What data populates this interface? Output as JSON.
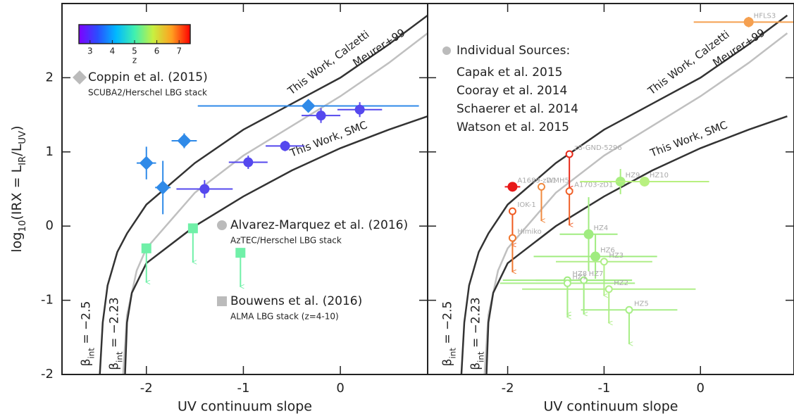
{
  "chart_data": [
    {
      "type": "scatter",
      "xlabel": "UV continuum slope",
      "ylabel": [
        "log",
        "10",
        "(IRX = L",
        "IR",
        "/L",
        "UV",
        ")"
      ],
      "xlim": [
        -2.87,
        0.9
      ],
      "ylim": [
        -2,
        3
      ],
      "xticks": [
        -2,
        -1,
        0
      ],
      "yticks": [
        -2,
        -1,
        0,
        1,
        2
      ],
      "colorbar": {
        "label": "z",
        "lim": [
          2.5,
          7.5
        ],
        "ticks": [
          3,
          4,
          5,
          6,
          7
        ],
        "colormap": [
          "#7f00ff",
          "#2a4dff",
          "#00b8ff",
          "#40f0b0",
          "#c8f040",
          "#ffa020",
          "#ff0000"
        ]
      },
      "curves": [
        {
          "name": "This Work, Calzetti",
          "color": "#333333",
          "x": [
            -2.48,
            -2.45,
            -2.4,
            -2.3,
            -2.2,
            -2.0,
            -1.5,
            -1.0,
            -0.5,
            0,
            0.5,
            0.9
          ],
          "y": [
            -2,
            -1.3,
            -0.8,
            -0.35,
            -0.1,
            0.29,
            0.85,
            1.3,
            1.65,
            2.0,
            2.45,
            2.84
          ]
        },
        {
          "name": "Meurer+99",
          "color": "#c0c0c0",
          "x": [
            -2.24,
            -2.2,
            -2.1,
            -2.0,
            -1.5,
            -1.0,
            -0.5,
            0,
            0.5,
            0.9
          ],
          "y": [
            -2,
            -1.2,
            -0.6,
            -0.3,
            0.45,
            0.95,
            1.35,
            1.75,
            2.2,
            2.6
          ]
        },
        {
          "name": "This Work, SMC",
          "color": "#333333",
          "x": [
            -2.22,
            -2.2,
            -2.15,
            -2.0,
            -1.5,
            -1.0,
            -0.5,
            0,
            0.5,
            0.9
          ],
          "y": [
            -2,
            -1.3,
            -0.9,
            -0.5,
            0.0,
            0.4,
            0.75,
            1.05,
            1.3,
            1.48
          ]
        }
      ],
      "asymptotes": [
        [
          "β",
          "int",
          " = −2.5"
        ],
        [
          "β",
          "int",
          " = −2.23"
        ]
      ],
      "series": [
        {
          "name": "Coppin et al. (2015)",
          "note": "SCUBA2/Herschel LBG stack",
          "marker": "diamond",
          "color": "#2f8ae8",
          "limit": false,
          "x": [
            -2.0,
            -1.83,
            -1.61,
            -0.33
          ],
          "y": [
            0.85,
            0.52,
            1.15,
            1.62
          ],
          "xerr": [
            0.1,
            0.08,
            0.13,
            1.14
          ],
          "yerr": [
            0.22,
            0.36,
            0.1,
            0.05
          ]
        },
        {
          "name": "Alvarez-Marquez et al. (2016)",
          "note": "AzTEC/Herschel LBG stack",
          "marker": "circle",
          "color": "#5548ee",
          "limit": false,
          "x": [
            -1.4,
            -0.95,
            -0.57,
            -0.2,
            0.2
          ],
          "y": [
            0.5,
            0.86,
            1.08,
            1.49,
            1.57
          ],
          "xerr": [
            0.29,
            0.2,
            0.2,
            0.2,
            0.23
          ],
          "yerr": [
            0.12,
            0.09,
            0.07,
            0.1,
            0.1
          ]
        },
        {
          "name": "Bouwens et al. (2016)",
          "note": "ALMA LBG stack (z=4-10)",
          "marker": "square",
          "color": "#70f0a8",
          "limit": true,
          "x": [
            -2.0,
            -1.52,
            -1.03
          ],
          "y": [
            -0.3,
            -0.03,
            -0.36
          ],
          "xerr": [
            null,
            null,
            null
          ],
          "yerr": [
            null,
            null,
            null
          ]
        }
      ]
    },
    {
      "type": "scatter",
      "xlabel": "UV continuum slope",
      "xlim": [
        -2.83,
        0.97
      ],
      "ylim": [
        -2,
        3
      ],
      "xticks": [
        -2,
        -1,
        0
      ],
      "yticks": [
        -2,
        -1,
        0,
        1,
        2
      ],
      "curves": [
        {
          "name": "This Work, Calzetti",
          "color": "#333333",
          "x": [
            -2.48,
            -2.45,
            -2.4,
            -2.3,
            -2.2,
            -2.0,
            -1.5,
            -1.0,
            -0.5,
            0,
            0.5,
            0.9
          ],
          "y": [
            -2,
            -1.3,
            -0.8,
            -0.35,
            -0.1,
            0.29,
            0.85,
            1.3,
            1.65,
            2.0,
            2.45,
            2.84
          ]
        },
        {
          "name": "Meurer+99",
          "color": "#c0c0c0",
          "x": [
            -2.24,
            -2.2,
            -2.1,
            -2.0,
            -1.5,
            -1.0,
            -0.5,
            0,
            0.5,
            0.9
          ],
          "y": [
            -2,
            -1.2,
            -0.6,
            -0.3,
            0.45,
            0.95,
            1.35,
            1.75,
            2.2,
            2.6
          ]
        },
        {
          "name": "This Work, SMC",
          "color": "#333333",
          "x": [
            -2.22,
            -2.2,
            -2.15,
            -2.0,
            -1.5,
            -1.0,
            -0.5,
            0,
            0.5,
            0.9
          ],
          "y": [
            -2,
            -1.3,
            -0.9,
            -0.5,
            0.0,
            0.4,
            0.75,
            1.05,
            1.3,
            1.48
          ]
        }
      ],
      "asymptotes": [
        [
          "β",
          "int",
          " = −2.5"
        ],
        [
          "β",
          "int",
          " = −2.23"
        ]
      ],
      "legend_title": "Individual Sources:",
      "references": [
        "Capak et al. 2015",
        "Cooray et al. 2014",
        "Schaerer et al. 2014",
        "Watson et al. 2015"
      ],
      "sources": {
        "labels": [
          "HFLS3",
          "A1689-zD1",
          "z8-GND-5296",
          "WMH5",
          "A1703-zD1",
          "IOK-1",
          "Himiko",
          "HZ9",
          "HZ10",
          "HZ4",
          "HZ6",
          "HZ3",
          "HZ8",
          "HZ7",
          "HZ1",
          "HZ2",
          "HZ5"
        ],
        "x": [
          0.5,
          -1.95,
          -1.36,
          -1.65,
          -1.36,
          -1.95,
          -1.95,
          -0.83,
          -0.58,
          -1.16,
          -1.09,
          -1.0,
          -1.38,
          -1.21,
          -1.38,
          -0.95,
          -0.74
        ],
        "y": [
          2.75,
          0.53,
          0.97,
          0.53,
          0.47,
          0.2,
          -0.16,
          0.6,
          0.6,
          -0.11,
          -0.41,
          -0.48,
          -0.73,
          -0.73,
          -0.77,
          -0.85,
          -1.13
        ],
        "xerr": [
          0.57,
          0.08,
          null,
          null,
          null,
          null,
          null,
          0.35,
          0.67,
          0.3,
          0.64,
          0.5,
          0.67,
          0.5,
          0.7,
          0.9,
          0.5
        ],
        "yerr": [
          0.07,
          0.05,
          null,
          null,
          null,
          null,
          null,
          0.17,
          0.05,
          0.5,
          0.3,
          null,
          null,
          null,
          null,
          null,
          null
        ],
        "colors": [
          "#f5a050",
          "#e81818",
          "#e82a1a",
          "#f08a40",
          "#f06028",
          "#f05a20",
          "#f07830",
          "#a8ee80",
          "#b8f080",
          "#a0ec80",
          "#a0ec80",
          "#b0ee88",
          "#a0ec80",
          "#a0ec80",
          "#a8ee88",
          "#b0ee88",
          "#a8ee88"
        ],
        "filled": [
          true,
          true,
          false,
          false,
          false,
          false,
          false,
          true,
          true,
          true,
          true,
          false,
          false,
          false,
          false,
          false,
          false
        ],
        "limit": [
          false,
          false,
          true,
          true,
          true,
          true,
          true,
          false,
          false,
          false,
          false,
          true,
          true,
          true,
          true,
          true,
          true
        ]
      }
    }
  ]
}
